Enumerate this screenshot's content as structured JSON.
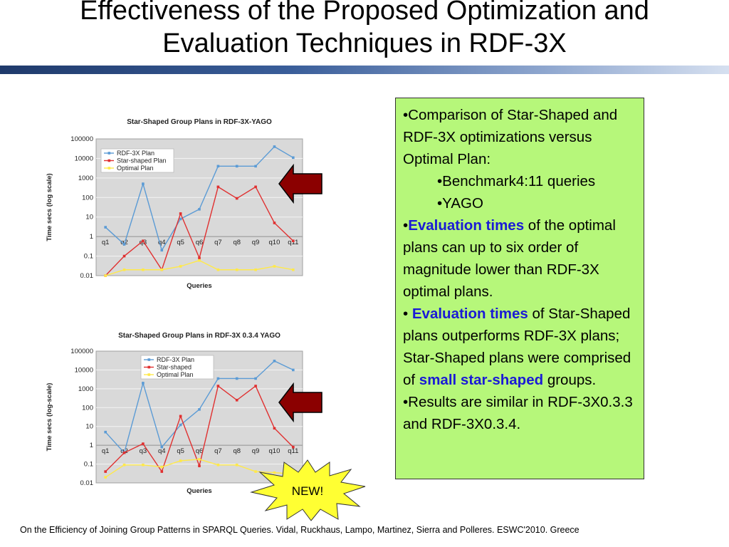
{
  "slide": {
    "title_line1": "Effectiveness of the Proposed Optimization and",
    "title_line2": "Evaluation Techniques in RDF-3X",
    "citation": "On the Efficiency of Joining Group Patterns in SPARQL Queries. Vidal, Ruckhaus, Lampo, Martinez, Sierra and Polleres. ESWC'2010. Greece",
    "badge": "NEW!"
  },
  "text_panel": {
    "b1": "•Comparison of Star-Shaped and   RDF-3X optimizations versus Optimal Plan:",
    "b1a": "•Benchmark4:11 queries",
    "b1b": "•YAGO",
    "b2_prefix": "•",
    "b2_hl": "Evaluation times",
    "b2_rest": " of the optimal plans can up to six order of magnitude lower than RDF-3X optimal plans.",
    "b3_prefix": "• ",
    "b3_hl": "Evaluation times",
    "b3_rest": " of Star-Shaped plans outperforms RDF-3X plans; Star-Shaped plans were comprised of ",
    "b3_hl2": "small star-shaped",
    "b3_end": " groups.",
    "b4": "•Results are similar in RDF-3X0.3.3 and RDF-3X0.3.4."
  },
  "colors": {
    "rdf3x": "#5b9bd5",
    "star": "#e03030",
    "optimal": "#ffe94a",
    "panel": "#b6f77a",
    "arrow": "#8b0000",
    "highlight": "#1a1ad6"
  },
  "chart_data": [
    {
      "type": "line",
      "title": "Star-Shaped Group Plans in RDF-3X-YAGO",
      "xlabel": "Queries",
      "ylabel": "Time secs (log scale)",
      "log_scale_y": true,
      "ylim": [
        0.01,
        100000
      ],
      "y_ticks": [
        "100000",
        "10000",
        "1000",
        "100",
        "10",
        "1",
        "0.1",
        "0.01"
      ],
      "categories": [
        "q1",
        "q2",
        "q3",
        "q4",
        "q5",
        "q6",
        "q7",
        "q8",
        "q9",
        "q10",
        "q11"
      ],
      "legend_position": "top-left",
      "grid": true,
      "series": [
        {
          "name": "RDF-3X Plan",
          "color": "#5b9bd5",
          "values": [
            3,
            0.4,
            500,
            0.2,
            8,
            25,
            4000,
            4000,
            4000,
            40000,
            11000
          ]
        },
        {
          "name": "Star-shaped Plan",
          "color": "#e03030",
          "values": [
            0.01,
            0.1,
            0.6,
            0.02,
            15,
            0.08,
            350,
            90,
            350,
            5,
            0.6
          ]
        },
        {
          "name": "Optimal Plan",
          "color": "#ffe94a",
          "values": [
            0.01,
            0.02,
            0.02,
            0.02,
            0.03,
            0.06,
            0.02,
            0.02,
            0.02,
            0.03,
            0.02
          ]
        }
      ]
    },
    {
      "type": "line",
      "title": "Star-Shaped Group Plans in RDF-3X 0.3.4 YAGO",
      "xlabel": "Queries",
      "ylabel": "Time secs (log-scale)",
      "log_scale_y": true,
      "ylim": [
        0.01,
        100000
      ],
      "y_ticks": [
        "100000",
        "10000",
        "1000",
        "100",
        "10",
        "1",
        "0.1",
        "0.01"
      ],
      "categories": [
        "q1",
        "q2",
        "q3",
        "q4",
        "q5",
        "q6",
        "q7",
        "q8",
        "q9",
        "q10",
        "q11"
      ],
      "legend_position": "top-center",
      "grid": true,
      "series": [
        {
          "name": "RDF-3X Plan",
          "color": "#5b9bd5",
          "values": [
            5,
            0.4,
            2000,
            0.8,
            12,
            80,
            3500,
            3500,
            3500,
            30000,
            10000
          ]
        },
        {
          "name": "Star-shaped",
          "color": "#e03030",
          "values": [
            0.04,
            0.4,
            1.2,
            0.04,
            35,
            0.08,
            1400,
            250,
            1400,
            8,
            0.8
          ]
        },
        {
          "name": "Optimal Plan",
          "color": "#ffe94a",
          "values": [
            0.02,
            0.09,
            0.09,
            0.07,
            0.15,
            0.18,
            0.09,
            0.09,
            0.04,
            0.035,
            0.03
          ]
        }
      ]
    }
  ]
}
